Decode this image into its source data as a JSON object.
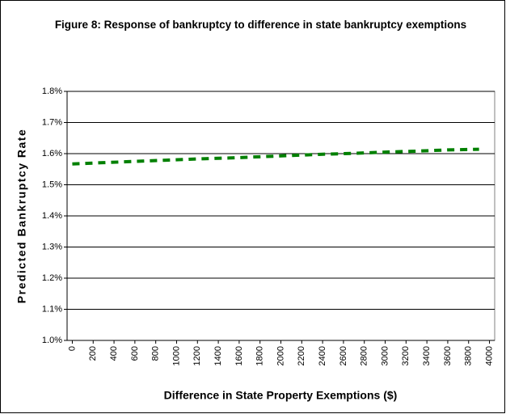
{
  "chart_data": {
    "type": "line",
    "title": "Figure 8: Response of bankruptcy to difference in state bankruptcy exemptions",
    "x_label": "Difference in State Property Exemptions ($)",
    "y_label": "Predicted Bankruptcy Rate",
    "x": [
      0,
      300,
      600,
      900,
      1200,
      1500,
      1800,
      2100,
      2400,
      2700,
      3000,
      3300,
      3600,
      3900
    ],
    "series": [
      {
        "name": "Predicted Bankruptcy Rate",
        "color": "#008000",
        "values": [
          1.567,
          1.571,
          1.575,
          1.579,
          1.583,
          1.586,
          1.59,
          1.594,
          1.598,
          1.601,
          1.605,
          1.608,
          1.612,
          1.614
        ]
      }
    ],
    "xlim": [
      -50,
      4050
    ],
    "xticks": [
      0,
      200,
      400,
      600,
      800,
      1000,
      1200,
      1400,
      1600,
      1800,
      2000,
      2200,
      2400,
      2600,
      2800,
      3000,
      3200,
      3400,
      3600,
      3800,
      4000
    ],
    "ylim": [
      1.0,
      1.8
    ],
    "yticks": [
      {
        "value": 1.0,
        "label": "1.0%"
      },
      {
        "value": 1.1,
        "label": "1.1%"
      },
      {
        "value": 1.2,
        "label": "1.2%"
      },
      {
        "value": 1.3,
        "label": "1.3%"
      },
      {
        "value": 1.4,
        "label": "1.4%"
      },
      {
        "value": 1.5,
        "label": "1.5%"
      },
      {
        "value": 1.6,
        "label": "1.6%"
      },
      {
        "value": 1.7,
        "label": "1.7%"
      },
      {
        "value": 1.8,
        "label": "1.8%"
      }
    ],
    "grid": true
  }
}
